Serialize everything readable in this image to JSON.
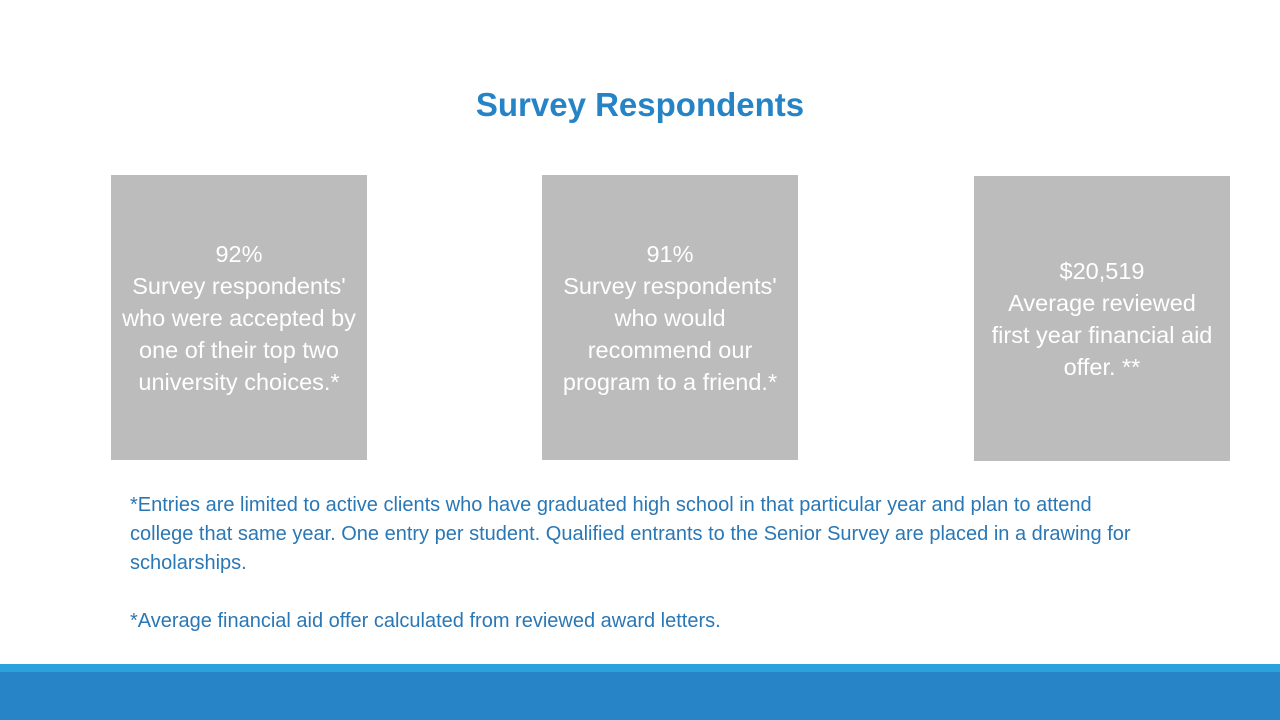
{
  "header": {
    "title": "Survey Respondents"
  },
  "stats": [
    {
      "value": "92%",
      "text": "Survey respondents' who were accepted by one of their top two university choices.*"
    },
    {
      "value": "91%",
      "text": "Survey respondents' who would recommend our program to a friend.*"
    },
    {
      "value": "$20,519",
      "text": "Average reviewed first year financial aid offer. **"
    }
  ],
  "footnotes": [
    "*Entries are limited to active clients who have graduated high school in that particular year and plan to attend college that same year. One entry per student. Qualified entrants to the Senior Survey are placed in a drawing for scholarships.",
    "*Average financial aid offer calculated from reviewed award letters."
  ]
}
